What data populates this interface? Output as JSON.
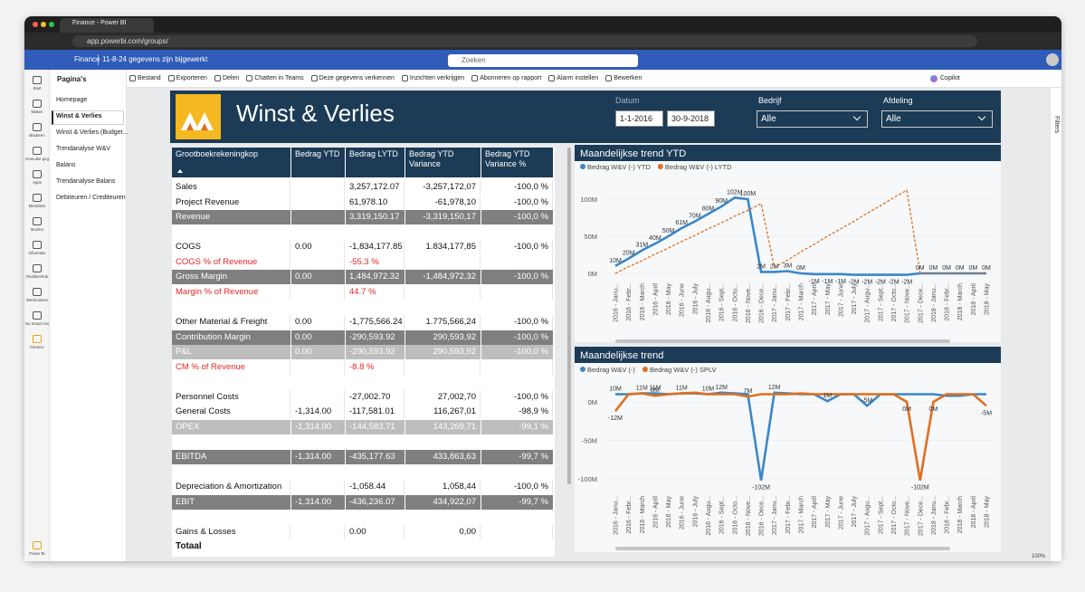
{
  "browser": {
    "tab": "Finance - Power BI",
    "url": "app.powerbi.com/groups/"
  },
  "app_header": {
    "workspace": "Finance",
    "status": "11-8-24 gegevens zijn bijgewerkt",
    "search": "Zoeken"
  },
  "nav": [
    "Start",
    "Maken",
    "Bladeren",
    "OneLake-gegevensh...",
    "Apps",
    "Metrieken",
    "Monitor",
    "Informatie",
    "Realtimehub",
    "Werkruimtes",
    "Nu Smart Insights...",
    "Finance",
    "Power BI"
  ],
  "pages": {
    "title": "Pagina's",
    "items": [
      "Homepage",
      "Winst & Verlies",
      "Winst & Verlies (Budget...",
      "Trendanalyse W&V",
      "Balans",
      "Trendanalyse Balans",
      "Debiteuren / Crediteuren"
    ],
    "selected": 1
  },
  "toolbar": {
    "items": [
      "Bestand",
      "Exporteren",
      "Delen",
      "Chatten in Teams",
      "Deze gegevens verkennen",
      "Inzichten verkrijgen",
      "Abonneren op rapport",
      "Alarm instellen",
      "Bewerken"
    ],
    "copilot": "Copilot"
  },
  "report": {
    "title": "Winst & Verlies",
    "slicers": [
      {
        "label": "Datum",
        "values": [
          "1-1-2016",
          "30-9-2018"
        ]
      },
      {
        "label": "Bedrijf",
        "value": "Alle"
      },
      {
        "label": "Afdeling",
        "value": "Alle"
      }
    ]
  },
  "table": {
    "columns": [
      "Grootboekrekeningkop",
      "Bedrag YTD",
      "Bedrag LYTD",
      "Bedrag YTD Variance",
      "Bedrag YTD Variance %"
    ],
    "rows": [
      {
        "style": "normal",
        "cells": [
          "Sales",
          null,
          "3,257,172.07",
          "-3,257,172,07",
          "-100,0 %"
        ]
      },
      {
        "style": "normal",
        "cells": [
          "Project Revenue",
          null,
          "61,978.10",
          "-61,978,10",
          "-100,0 %"
        ]
      },
      {
        "style": "total",
        "cells": [
          "Revenue",
          null,
          "3,319,150.17",
          "-3,319,150,17",
          "-100,0 %"
        ]
      },
      null,
      {
        "style": "normal",
        "cells": [
          "COGS",
          "0.00",
          "-1,834,177.85",
          "1.834,177,85",
          "-100,0 %"
        ]
      },
      {
        "style": "ratio",
        "cells": [
          "COGS % of Revenue",
          null,
          "-55.3 %",
          null,
          null
        ]
      },
      {
        "style": "total",
        "cells": [
          "Gross Margin",
          "0.00",
          "1,484,972.32",
          "-1,484,972,32",
          "-100,0 %"
        ]
      },
      {
        "style": "ratio",
        "cells": [
          "Margin % of Revenue",
          null,
          "44.7 %",
          null,
          null
        ]
      },
      null,
      {
        "style": "normal",
        "cells": [
          "Other Material & Freight",
          "0.00",
          "-1,775,566.24",
          "1.775,566,24",
          "-100,0 %"
        ]
      },
      {
        "style": "total",
        "cells": [
          "Contribution Margin",
          "0.00",
          "-290,593.92",
          "290,593,92",
          "-100,0 %"
        ]
      },
      {
        "style": "sub",
        "cells": [
          "P&L",
          "0.00",
          "-290,593.92",
          "290,593,92",
          "-100,0 %"
        ]
      },
      {
        "style": "ratio",
        "cells": [
          "CM % of Revenue",
          null,
          "-8.8 %",
          null,
          null
        ]
      },
      null,
      {
        "style": "normal",
        "cells": [
          "Personnel Costs",
          null,
          "-27,002.70",
          "27,002,70",
          "-100,0 %"
        ]
      },
      {
        "style": "normal",
        "cells": [
          "General Costs",
          "-1,314.00",
          "-117,581.01",
          "116,267,01",
          "-98,9 %"
        ]
      },
      {
        "style": "sub",
        "cells": [
          "OPEX",
          "-1,314.00",
          "-144,583.71",
          "143,269,71",
          "-99,1 %"
        ]
      },
      null,
      {
        "style": "total",
        "cells": [
          "EBITDA",
          "-1,314.00",
          "-435,177.63",
          "433,863,63",
          "-99,7 %"
        ]
      },
      null,
      {
        "style": "normal",
        "cells": [
          "Depreciation & Amortization",
          null,
          "-1,058.44",
          "1,058,44",
          "-100,0 %"
        ]
      },
      {
        "style": "total",
        "cells": [
          "EBIT",
          "-1,314.00",
          "-436,236.07",
          "434,922,07",
          "-99,7 %"
        ]
      },
      null,
      {
        "style": "normal",
        "cells": [
          "Gains & Losses",
          null,
          "0.00",
          "0,00",
          null
        ]
      }
    ],
    "footer": "Totaal"
  },
  "chart_data": [
    {
      "type": "line",
      "title": "Maandelijkse trend YTD",
      "categories": [
        "2016 - Janu...",
        "2016 - Febr...",
        "2016 - March",
        "2016 - April",
        "2016 - May",
        "2016 - June",
        "2016 - July",
        "2016 - Augu...",
        "2016 - Sept...",
        "2016 - Octo...",
        "2016 - Nove...",
        "2016 - Dece...",
        "2017 - Janu...",
        "2017 - Febr...",
        "2017 - March",
        "2017 - April",
        "2017 - May",
        "2017 - June",
        "2017 - July",
        "2017 - Augu...",
        "2017 - Sept...",
        "2017 - Octo...",
        "2017 - Nove...",
        "2017 - Dece...",
        "2018 - Janu...",
        "2018 - Febr...",
        "2018 - March",
        "2018 - April",
        "2018 - May"
      ],
      "series": [
        {
          "name": "Bedrag W&V (-) YTD",
          "color": "#3a87c8",
          "dashed": false,
          "values": [
            10,
            20,
            31,
            40,
            50,
            61,
            70,
            80,
            90,
            102,
            100,
            2,
            2,
            3,
            0,
            -1,
            -1,
            -1,
            -2,
            -2,
            -2,
            -2,
            -2,
            0,
            0,
            0,
            0,
            0,
            0
          ],
          "value_labels": [
            "10M",
            "20M",
            "31M",
            "40M",
            "50M",
            "61M",
            "70M",
            "80M",
            "90M",
            "102M",
            "100M",
            "2M",
            "2M",
            "3M",
            "0M",
            "-1M",
            "-1M",
            "-1M",
            "-2M",
            "-2M",
            "-2M",
            "-2M",
            "-2M",
            "0M",
            "0M",
            "0M",
            "0M",
            "0M",
            "0M"
          ]
        },
        {
          "name": "Bedrag W&V (-) LYTD",
          "color": "#e06e1e",
          "dashed": true,
          "values": [
            0,
            9,
            17,
            26,
            34,
            43,
            51,
            60,
            68,
            77,
            85,
            94,
            8,
            18,
            29,
            39,
            50,
            60,
            70,
            81,
            91,
            102,
            112,
            0,
            0,
            0,
            0,
            0,
            0
          ]
        }
      ],
      "ylim": [
        -5,
        115
      ],
      "yticks": [
        {
          "value": 0,
          "label": "0M"
        },
        {
          "value": 50,
          "label": "50M"
        },
        {
          "value": 100,
          "label": "100M"
        }
      ]
    },
    {
      "type": "line",
      "title": "Maandelijkse trend",
      "categories": [
        "2016 - Janu...",
        "2016 - Febr...",
        "2016 - March",
        "2016 - April",
        "2016 - May",
        "2016 - June",
        "2016 - July",
        "2016 - Augu...",
        "2016 - Sept...",
        "2016 - Octo...",
        "2016 - Nove...",
        "2016 - Dece...",
        "2017 - Janu...",
        "2017 - Febr...",
        "2017 - March",
        "2017 - April",
        "2017 - May",
        "2017 - June",
        "2017 - July",
        "2017 - Augu...",
        "2017 - Sept...",
        "2017 - Octo...",
        "2017 - Nove...",
        "2017 - Dece...",
        "2018 - Janu...",
        "2018 - Febr...",
        "2018 - March",
        "2018 - April",
        "2018 - May"
      ],
      "series": [
        {
          "name": "Bedrag W&V (-)",
          "color": "#3a87c8",
          "dashed": false,
          "values": [
            10,
            10,
            11,
            11,
            10,
            11,
            11,
            10,
            12,
            11,
            10,
            -102,
            12,
            11,
            10,
            10,
            1,
            10,
            10,
            -5,
            10,
            10,
            10,
            10,
            10,
            8,
            8,
            10,
            10
          ],
          "value_labels": [
            "10M",
            null,
            "11M",
            "11M",
            null,
            "11M",
            null,
            "10M",
            "12M",
            null,
            null,
            "-102M",
            "12M",
            null,
            null,
            null,
            "1M",
            null,
            null,
            "-5M",
            null,
            null,
            null,
            null,
            null,
            null,
            null,
            null,
            null
          ]
        },
        {
          "name": "Bedrag W&V (-) SPLV",
          "color": "#e06e1e",
          "dashed": false,
          "values": [
            -12,
            10,
            11,
            8,
            10,
            11,
            12,
            10,
            10,
            10,
            7,
            10,
            10,
            10,
            11,
            10,
            10,
            10,
            10,
            10,
            10,
            10,
            0,
            -102,
            0,
            10,
            10,
            10,
            -5
          ],
          "value_labels": [
            "-12M",
            null,
            null,
            "8M",
            null,
            null,
            null,
            null,
            null,
            null,
            "7M",
            null,
            null,
            null,
            null,
            null,
            null,
            null,
            null,
            null,
            null,
            null,
            "0M",
            "-102M",
            "0M",
            null,
            null,
            null,
            "-5M"
          ]
        }
      ],
      "ylim": [
        -110,
        12
      ],
      "yticks": [
        {
          "value": 0,
          "label": "0M"
        },
        {
          "value": -50,
          "label": "-50M"
        },
        {
          "value": -100,
          "label": "-100M"
        }
      ]
    }
  ],
  "filters": "Filters",
  "zoom": "100%"
}
